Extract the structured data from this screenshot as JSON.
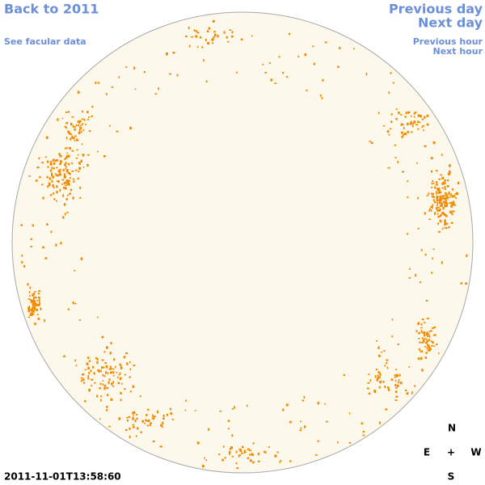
{
  "links": {
    "back": "Back to 2011",
    "facular": "See facular data",
    "previous_day": "Previous day",
    "next_day": "Next day",
    "previous_hour": "Previous hour",
    "next_hour": "Next hour"
  },
  "timestamp": "2011-11-01T13:58:60",
  "compass": {
    "north": "N",
    "east": "E",
    "center": "+",
    "west": "W",
    "south": "S"
  }
}
